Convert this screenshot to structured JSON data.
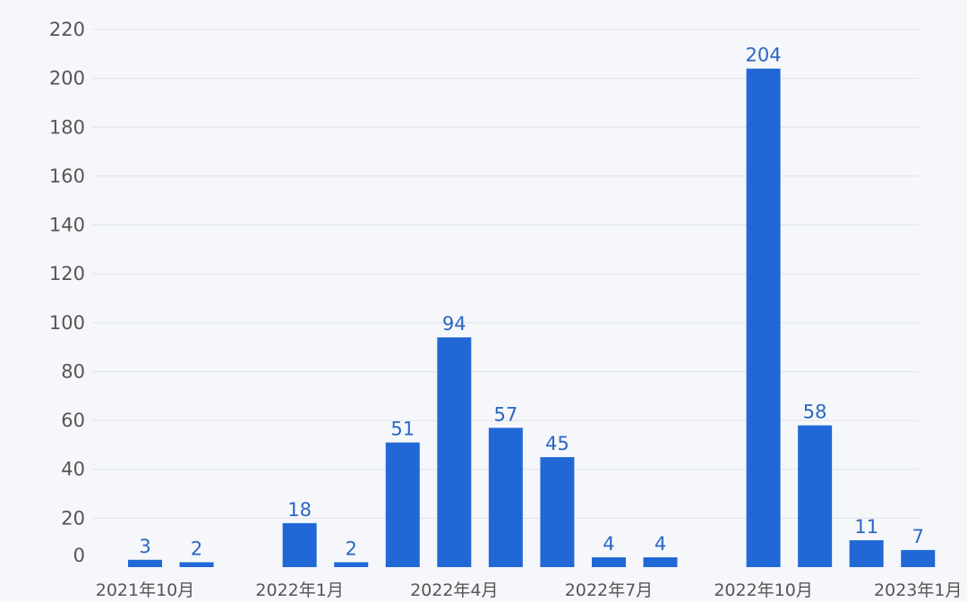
{
  "chart_data": {
    "type": "bar",
    "categories": [
      "2021年10月",
      "2021年11月",
      "2021年12月",
      "2022年1月",
      "2022年2月",
      "2022年3月",
      "2022年4月",
      "2022年5月",
      "2022年6月",
      "2022年7月",
      "2022年8月",
      "2022年9月",
      "2022年10月",
      "2022年11月",
      "2022年12月",
      "2023年1月"
    ],
    "values": [
      3,
      2,
      null,
      18,
      2,
      51,
      94,
      57,
      45,
      4,
      4,
      null,
      204,
      58,
      11,
      7
    ],
    "data_labels": [
      "3",
      "2",
      "",
      "18",
      "2",
      "51",
      "94",
      "57",
      "45",
      "4",
      "4",
      "",
      "204",
      "58",
      "11",
      "7"
    ],
    "x_tick_labels": [
      "2021年10月",
      "2022年1月",
      "2022年4月",
      "2022年7月",
      "2022年10月",
      "2023年1月"
    ],
    "y_tick_labels": [
      "0",
      "20",
      "40",
      "60",
      "80",
      "100",
      "120",
      "140",
      "160",
      "180",
      "200",
      "220"
    ],
    "ylim": [
      0,
      220
    ],
    "grid": true,
    "bar_color": "#2168d6",
    "label_color": "#2a66c4"
  }
}
